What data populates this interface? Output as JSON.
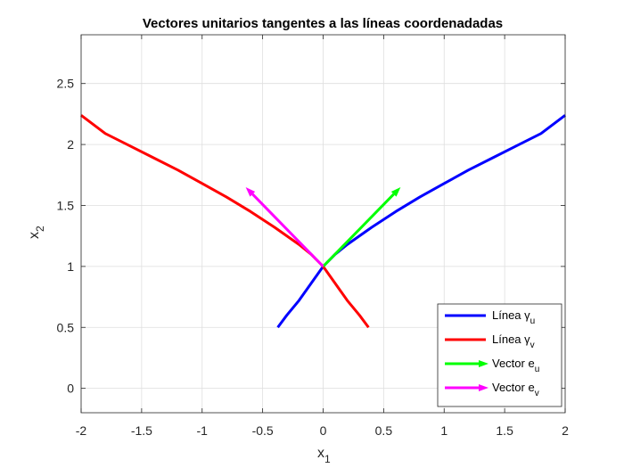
{
  "chart_data": {
    "type": "line",
    "title": "Vectores unitarios tangentes a las líneas coordenadadas",
    "xlabel": "x",
    "xlabel_sub": "1",
    "ylabel": "x",
    "ylabel_sub": "2",
    "xlim": [
      -2,
      2
    ],
    "ylim": [
      -0.2,
      2.9
    ],
    "xticks": [
      -2,
      -1.5,
      -1,
      -0.5,
      0,
      0.5,
      1,
      1.5,
      2
    ],
    "xtick_labels": [
      "-2",
      "-1.5",
      "-1",
      "-0.5",
      "0",
      "0.5",
      "1",
      "1.5",
      "2"
    ],
    "yticks": [
      0,
      0.5,
      1,
      1.5,
      2,
      2.5
    ],
    "ytick_labels": [
      "0",
      "0.5",
      "1",
      "1.5",
      "2",
      "2.5"
    ],
    "grid": true,
    "legend_position": "bottom-right",
    "series": [
      {
        "name": "Línea γ",
        "name_sub": "u",
        "kind": "line",
        "color": "#0000ff",
        "x": [
          -0.375,
          -0.3,
          -0.2,
          -0.1,
          0,
          0.1,
          0.2,
          0.4,
          0.6,
          0.8,
          1.0,
          1.2,
          1.4,
          1.6,
          1.8,
          2.0
        ],
        "y": [
          0.5,
          0.6,
          0.72,
          0.86,
          1.0,
          1.1,
          1.18,
          1.32,
          1.45,
          1.57,
          1.68,
          1.79,
          1.89,
          1.99,
          2.09,
          2.24
        ]
      },
      {
        "name": "Línea γ",
        "name_sub": "v",
        "kind": "line",
        "color": "#ff0000",
        "x": [
          -2.0,
          -1.8,
          -1.6,
          -1.4,
          -1.2,
          -1.0,
          -0.8,
          -0.6,
          -0.4,
          -0.2,
          -0.1,
          0,
          0.1,
          0.2,
          0.3,
          0.375
        ],
        "y": [
          2.24,
          2.09,
          1.99,
          1.89,
          1.79,
          1.68,
          1.57,
          1.45,
          1.32,
          1.18,
          1.1,
          1.0,
          0.86,
          0.72,
          0.6,
          0.5
        ]
      },
      {
        "name": "Vector e",
        "name_sub": "u",
        "kind": "arrow",
        "color": "#00ff00",
        "x": [
          0,
          0.64
        ],
        "y": [
          1,
          1.65
        ]
      },
      {
        "name": "Vector e",
        "name_sub": "v",
        "kind": "arrow",
        "color": "#ff00ff",
        "x": [
          0,
          -0.64
        ],
        "y": [
          1,
          1.65
        ]
      }
    ]
  }
}
